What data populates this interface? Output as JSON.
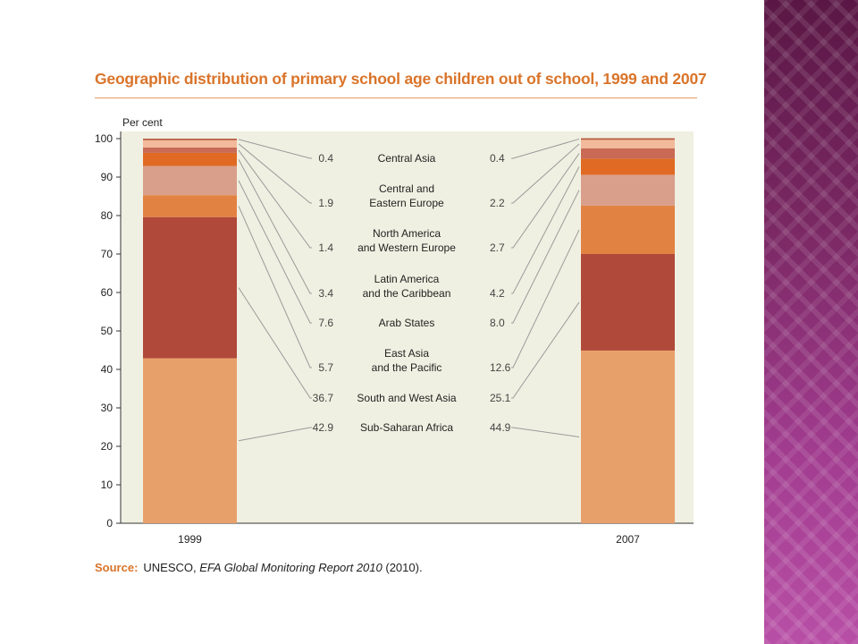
{
  "slide": {
    "accent_panel_colors": [
      "#5a1745",
      "#7a2863",
      "#a13c8f",
      "#b84fa6"
    ],
    "chart_background": "#f0f0e2"
  },
  "source": {
    "label": "Source:",
    "prefix": "UNESCO, ",
    "italic": "EFA Global Monitoring Report 2010",
    "suffix": " (2010)."
  },
  "chart_data": {
    "type": "bar",
    "stacked": true,
    "title": "Geographic distribution of primary school age children out of school, 1999 and 2007",
    "ylabel": "Per cent",
    "ylim": [
      0,
      100
    ],
    "yticks": [
      0,
      10,
      20,
      30,
      40,
      50,
      60,
      70,
      80,
      90,
      100
    ],
    "grid": false,
    "categories": [
      "1999",
      "2007"
    ],
    "series": [
      {
        "name": "Sub-Saharan Africa",
        "label_lines": [
          "Sub-Saharan Africa"
        ],
        "values": [
          42.9,
          44.9
        ],
        "color": "#e8a06a"
      },
      {
        "name": "South and West Asia",
        "label_lines": [
          "South and West Asia"
        ],
        "values": [
          36.7,
          25.1
        ],
        "color": "#b0493a"
      },
      {
        "name": "East Asia and the Pacific",
        "label_lines": [
          "East Asia",
          "and the Pacific"
        ],
        "values": [
          5.7,
          12.6
        ],
        "color": "#e28242"
      },
      {
        "name": "Arab States",
        "label_lines": [
          "Arab States"
        ],
        "values": [
          7.6,
          8.0
        ],
        "color": "#d99f8a"
      },
      {
        "name": "Latin America and the Caribbean",
        "label_lines": [
          "Latin America",
          "and the Caribbean"
        ],
        "values": [
          3.4,
          4.2
        ],
        "color": "#e06a24"
      },
      {
        "name": "North America and Western Europe",
        "label_lines": [
          "North America",
          "and Western Europe"
        ],
        "values": [
          1.4,
          2.7
        ],
        "color": "#c86a55"
      },
      {
        "name": "Central and Eastern Europe",
        "label_lines": [
          "Central and",
          "Eastern Europe"
        ],
        "values": [
          1.9,
          2.2
        ],
        "color": "#f2b99a"
      },
      {
        "name": "Central Asia",
        "label_lines": [
          "Central Asia"
        ],
        "values": [
          0.4,
          0.4
        ],
        "color": "#b65a3e"
      }
    ],
    "value_labels_1999": [
      "42.9",
      "36.7",
      "5.7",
      "7.6",
      "3.4",
      "1.4",
      "1.9",
      "0.4"
    ],
    "value_labels_2007": [
      "44.9",
      "25.1",
      "12.6",
      "8.0",
      "4.2",
      "2.7",
      "2.2",
      "0.4"
    ]
  }
}
